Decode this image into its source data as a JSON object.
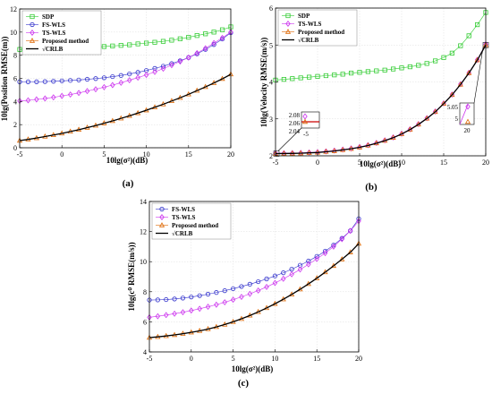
{
  "colors": {
    "SDP": "#33cc33",
    "FS-WLS": "#3333cc",
    "TS-WLS": "#cc33ee",
    "Proposed method": "#dd6600",
    "CRLB": "#000000",
    "inset_box": "#cc0000"
  },
  "chart_data": [
    {
      "type": "line",
      "panel_label": "(a)",
      "xlabel": "10lg(σ²)(dB)",
      "ylabel": "10lg(Position RMSE(m))",
      "xlim": [
        -5,
        20
      ],
      "ylim": [
        0,
        12
      ],
      "x_ticks": [
        -5,
        0,
        5,
        10,
        15,
        20
      ],
      "y_ticks": [
        0,
        2,
        4,
        6,
        8,
        10,
        12
      ],
      "grid": true,
      "legend_position": "top-left",
      "x": [
        -5,
        -4,
        -3,
        -2,
        -1,
        0,
        1,
        2,
        3,
        4,
        5,
        6,
        7,
        8,
        9,
        10,
        11,
        12,
        13,
        14,
        15,
        16,
        17,
        18,
        19,
        20
      ],
      "series": [
        {
          "name": "SDP",
          "marker": "square",
          "values": [
            8.5,
            8.5,
            8.5,
            8.52,
            8.55,
            8.58,
            8.6,
            8.62,
            8.65,
            8.7,
            8.75,
            8.8,
            8.85,
            8.9,
            8.98,
            9.05,
            9.12,
            9.2,
            9.3,
            9.42,
            9.55,
            9.7,
            9.85,
            10.0,
            10.2,
            10.45
          ]
        },
        {
          "name": "FS-WLS",
          "marker": "circle",
          "values": [
            5.7,
            5.7,
            5.7,
            5.72,
            5.75,
            5.78,
            5.82,
            5.86,
            5.92,
            5.98,
            6.05,
            6.15,
            6.25,
            6.38,
            6.52,
            6.68,
            6.86,
            7.05,
            7.28,
            7.52,
            7.8,
            8.12,
            8.5,
            8.92,
            9.4,
            9.95
          ]
        },
        {
          "name": "TS-WLS",
          "marker": "diamond",
          "values": [
            4.05,
            4.1,
            4.18,
            4.26,
            4.36,
            4.48,
            4.6,
            4.74,
            4.9,
            5.06,
            5.24,
            5.42,
            5.62,
            5.84,
            6.06,
            6.3,
            6.56,
            6.84,
            7.14,
            7.46,
            7.8,
            8.18,
            8.6,
            9.05,
            9.5,
            10.0
          ]
        },
        {
          "name": "Proposed method",
          "marker": "triangle",
          "values": [
            0.62,
            0.72,
            0.84,
            0.97,
            1.1,
            1.24,
            1.4,
            1.56,
            1.74,
            1.92,
            2.12,
            2.32,
            2.54,
            2.76,
            3.0,
            3.24,
            3.5,
            3.76,
            4.04,
            4.32,
            4.62,
            4.94,
            5.26,
            5.6,
            5.96,
            6.35
          ]
        },
        {
          "name": "√CRLB",
          "marker": "none",
          "values": [
            0.62,
            0.72,
            0.84,
            0.97,
            1.1,
            1.24,
            1.4,
            1.56,
            1.74,
            1.92,
            2.12,
            2.32,
            2.54,
            2.76,
            3.0,
            3.24,
            3.5,
            3.76,
            4.04,
            4.32,
            4.62,
            4.94,
            5.26,
            5.6,
            5.96,
            6.35
          ]
        }
      ]
    },
    {
      "type": "line",
      "panel_label": "(b)",
      "xlabel": "10lg(σ²)(dB)",
      "ylabel": "10lg(Velocity RMSE(m/s))",
      "xlim": [
        -5,
        20
      ],
      "ylim": [
        2,
        6
      ],
      "x_ticks": [
        -5,
        0,
        5,
        10,
        15,
        20
      ],
      "y_ticks": [
        2,
        3,
        4,
        5,
        6
      ],
      "grid": true,
      "legend_position": "top-left",
      "x": [
        -5,
        -4,
        -3,
        -2,
        -1,
        0,
        1,
        2,
        3,
        4,
        5,
        6,
        7,
        8,
        9,
        10,
        11,
        12,
        13,
        14,
        15,
        16,
        17,
        18,
        19,
        20
      ],
      "series": [
        {
          "name": "SDP",
          "marker": "square",
          "values": [
            4.05,
            4.07,
            4.09,
            4.11,
            4.13,
            4.15,
            4.17,
            4.19,
            4.21,
            4.24,
            4.26,
            4.28,
            4.3,
            4.32,
            4.35,
            4.38,
            4.41,
            4.45,
            4.5,
            4.57,
            4.66,
            4.78,
            4.98,
            5.25,
            5.55,
            5.88
          ]
        },
        {
          "name": "TS-WLS",
          "marker": "diamond",
          "values": [
            2.07,
            2.072,
            2.075,
            2.08,
            2.09,
            2.1,
            2.12,
            2.14,
            2.17,
            2.2,
            2.24,
            2.29,
            2.35,
            2.42,
            2.5,
            2.6,
            2.72,
            2.86,
            3.02,
            3.2,
            3.42,
            3.66,
            3.94,
            4.25,
            4.6,
            5.02
          ]
        },
        {
          "name": "Proposed method",
          "marker": "triangle",
          "values": [
            2.06,
            2.062,
            2.065,
            2.07,
            2.08,
            2.09,
            2.11,
            2.13,
            2.16,
            2.19,
            2.23,
            2.28,
            2.34,
            2.41,
            2.49,
            2.59,
            2.71,
            2.85,
            3.01,
            3.19,
            3.41,
            3.65,
            3.93,
            4.24,
            4.59,
            5.0
          ]
        },
        {
          "name": "√CRLB",
          "marker": "none",
          "values": [
            2.06,
            2.062,
            2.065,
            2.07,
            2.08,
            2.09,
            2.11,
            2.13,
            2.16,
            2.19,
            2.23,
            2.28,
            2.34,
            2.41,
            2.49,
            2.59,
            2.71,
            2.85,
            3.01,
            3.19,
            3.41,
            3.65,
            3.93,
            4.24,
            4.59,
            5.0
          ]
        }
      ],
      "insets": [
        {
          "y_ticks": [
            "2.08",
            "2.06",
            "2.04"
          ],
          "x_tick": "-5"
        },
        {
          "y_ticks": [
            "5.05",
            "5"
          ],
          "x_tick": "20"
        }
      ]
    },
    {
      "type": "line",
      "panel_label": "(c)",
      "xlabel": "10lg(σ²)(dB)",
      "ylabel": "10lg(c⁰ RMSE(m/s))",
      "xlim": [
        -5,
        20
      ],
      "ylim": [
        4,
        14
      ],
      "x_ticks": [
        -5,
        0,
        5,
        10,
        15,
        20
      ],
      "y_ticks": [
        4,
        6,
        8,
        10,
        12,
        14
      ],
      "grid": true,
      "legend_position": "top-left",
      "x": [
        -5,
        -4,
        -3,
        -2,
        -1,
        0,
        1,
        2,
        3,
        4,
        5,
        6,
        7,
        8,
        9,
        10,
        11,
        12,
        13,
        14,
        15,
        16,
        17,
        18,
        19,
        20
      ],
      "series": [
        {
          "name": "FS-WLS",
          "marker": "circle",
          "values": [
            7.45,
            7.46,
            7.48,
            7.52,
            7.58,
            7.65,
            7.74,
            7.84,
            7.95,
            8.07,
            8.2,
            8.35,
            8.5,
            8.67,
            8.85,
            9.05,
            9.26,
            9.5,
            9.76,
            10.04,
            10.35,
            10.7,
            11.1,
            11.55,
            12.05,
            12.85
          ]
        },
        {
          "name": "TS-WLS",
          "marker": "diamond",
          "values": [
            6.3,
            6.37,
            6.45,
            6.54,
            6.64,
            6.75,
            6.87,
            7.0,
            7.14,
            7.3,
            7.47,
            7.66,
            7.86,
            8.08,
            8.32,
            8.58,
            8.86,
            9.16,
            9.48,
            9.82,
            10.18,
            10.57,
            11.0,
            11.5,
            12.05,
            12.7
          ]
        },
        {
          "name": "Proposed method",
          "marker": "triangle",
          "values": [
            4.95,
            5.0,
            5.06,
            5.13,
            5.21,
            5.3,
            5.4,
            5.52,
            5.66,
            5.82,
            6.0,
            6.2,
            6.42,
            6.66,
            6.92,
            7.2,
            7.5,
            7.82,
            8.16,
            8.52,
            8.9,
            9.3,
            9.72,
            10.16,
            10.62,
            11.2
          ]
        },
        {
          "name": "√CRLB",
          "marker": "none",
          "values": [
            4.95,
            5.0,
            5.06,
            5.13,
            5.21,
            5.3,
            5.4,
            5.52,
            5.66,
            5.82,
            6.0,
            6.2,
            6.42,
            6.66,
            6.92,
            7.2,
            7.5,
            7.82,
            8.16,
            8.52,
            8.9,
            9.3,
            9.72,
            10.16,
            10.62,
            11.2
          ]
        }
      ]
    }
  ]
}
